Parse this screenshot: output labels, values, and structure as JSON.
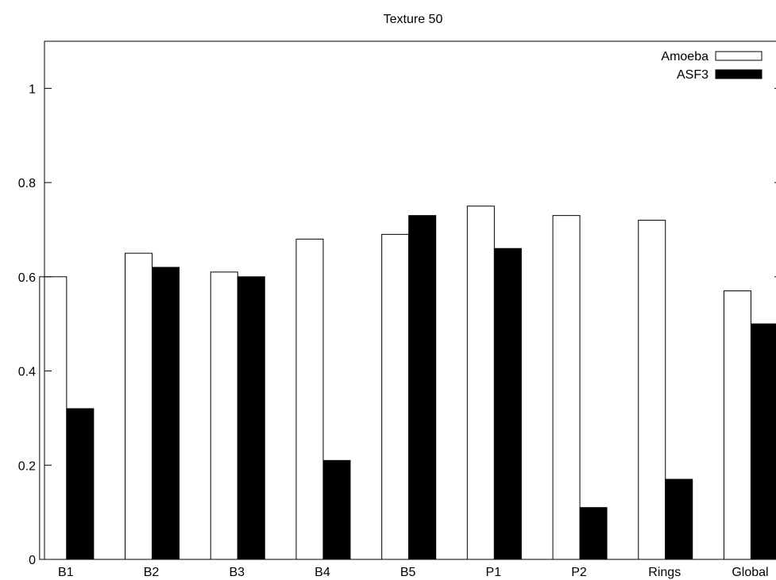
{
  "chart_data": {
    "type": "bar",
    "title": "Texture 50",
    "xlabel": "",
    "ylabel": "",
    "categories": [
      "B1",
      "B2",
      "B3",
      "B4",
      "B5",
      "P1",
      "P2",
      "Rings",
      "Global"
    ],
    "ylim": [
      0,
      1.1
    ],
    "yticks": [
      "0",
      "0.2",
      "0.4",
      "0.6",
      "0.8",
      "1"
    ],
    "grid": false,
    "legend_position": "top-right",
    "series": [
      {
        "name": "Amoeba",
        "values": [
          0.6,
          0.65,
          0.61,
          0.68,
          0.69,
          0.75,
          0.73,
          0.72,
          0.57
        ],
        "fill": "#ffffff",
        "stroke": "#000000"
      },
      {
        "name": "ASF3",
        "values": [
          0.32,
          0.62,
          0.6,
          0.21,
          0.73,
          0.66,
          0.11,
          0.17,
          0.5
        ],
        "fill": "#000000",
        "stroke": "#000000"
      }
    ]
  }
}
